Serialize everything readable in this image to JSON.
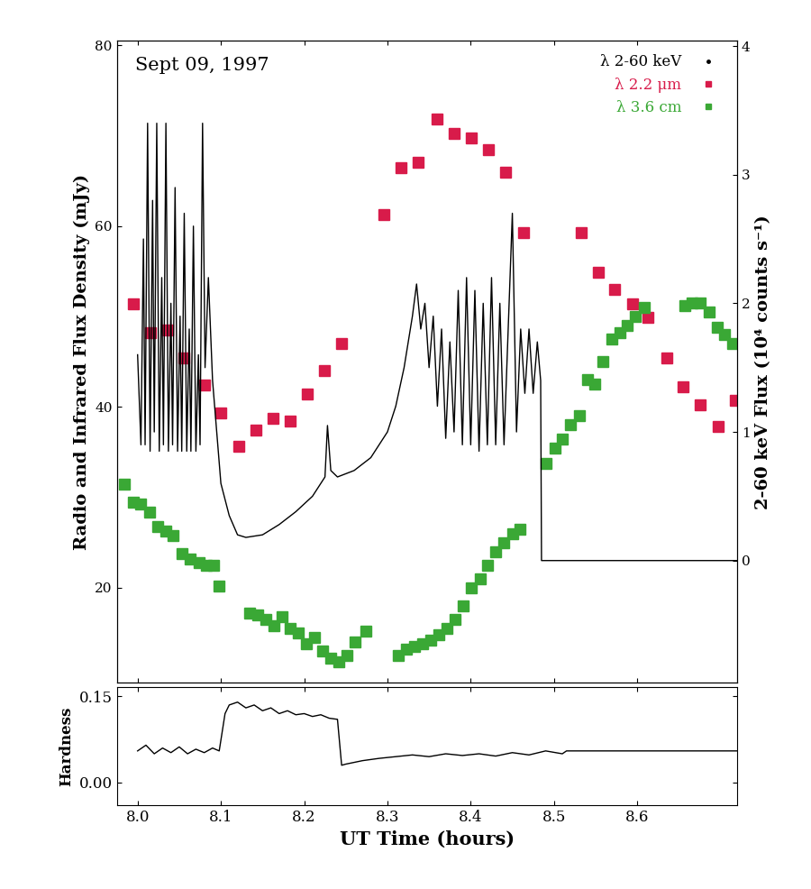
{
  "chart_data": [
    {
      "type": "line",
      "annotations": [
        {
          "text": "Sept 09, 1997"
        }
      ],
      "y_label": "Radio and Infrared Flux Density (mJy)",
      "y2_label": "2-60 keV Flux (10⁴ counts s⁻¹)",
      "xlim": [
        7.975,
        8.72
      ],
      "xticks": [
        8.0,
        8.1,
        8.2,
        8.3,
        8.4,
        8.5,
        8.6
      ],
      "ylim": [
        9.5,
        80.5
      ],
      "yticks": [
        20,
        40,
        60,
        80
      ],
      "y2lim": [
        -0.95,
        4.04
      ],
      "y2ticks": [
        0,
        1,
        2,
        3,
        4
      ],
      "tick_labels": "y",
      "legend": "upper right",
      "series": [
        {
          "name": "λ 2-60 keV",
          "color": "#000000",
          "axis": "y2",
          "type": "line",
          "marker": "none",
          "line_style": "solid",
          "x": [
            8.0,
            8.004,
            8.007,
            8.009,
            8.012,
            8.015,
            8.018,
            8.02,
            8.023,
            8.026,
            8.029,
            8.031,
            8.034,
            8.037,
            8.04,
            8.042,
            8.045,
            8.048,
            8.051,
            8.053,
            8.056,
            8.059,
            8.062,
            8.064,
            8.067,
            8.07,
            8.073,
            8.075,
            8.078,
            8.081,
            8.085,
            8.09,
            8.095,
            8.1,
            8.11,
            8.12,
            8.13,
            8.15,
            8.17,
            8.19,
            8.21,
            8.22,
            8.225,
            8.228,
            8.232,
            8.24,
            8.26,
            8.28,
            8.3,
            8.31,
            8.32,
            8.33,
            8.335,
            8.34,
            8.345,
            8.35,
            8.355,
            8.36,
            8.365,
            8.37,
            8.375,
            8.38,
            8.385,
            8.39,
            8.395,
            8.4,
            8.405,
            8.41,
            8.415,
            8.42,
            8.425,
            8.43,
            8.435,
            8.44,
            8.445,
            8.45,
            8.455,
            8.46,
            8.465,
            8.47,
            8.475,
            8.48,
            8.484,
            8.485,
            8.72
          ],
          "values": [
            1.6,
            0.9,
            2.5,
            0.9,
            3.4,
            0.85,
            2.8,
            1.0,
            3.4,
            0.85,
            2.2,
            0.9,
            3.4,
            0.85,
            2.0,
            0.9,
            2.9,
            0.85,
            1.9,
            0.85,
            2.7,
            0.85,
            1.8,
            0.85,
            2.6,
            0.85,
            1.6,
            0.9,
            3.4,
            1.5,
            2.2,
            1.4,
            1.0,
            0.6,
            0.35,
            0.2,
            0.18,
            0.2,
            0.28,
            0.38,
            0.5,
            0.6,
            0.65,
            1.05,
            0.7,
            0.65,
            0.7,
            0.8,
            1.0,
            1.2,
            1.5,
            1.9,
            2.15,
            1.8,
            2.0,
            1.5,
            1.9,
            1.2,
            1.8,
            0.95,
            1.7,
            1.0,
            2.1,
            0.9,
            2.2,
            0.9,
            2.1,
            0.85,
            2.0,
            0.9,
            2.2,
            0.9,
            2.0,
            0.9,
            1.8,
            2.7,
            1.0,
            1.8,
            1.3,
            1.8,
            1.3,
            1.7,
            1.4,
            0.0,
            0.0
          ]
        },
        {
          "name": "λ 2.2 μm",
          "color": "#d81b4a",
          "type": "scatter",
          "marker": "square",
          "line_style": "none",
          "x": [
            7.995,
            8.015,
            8.036,
            8.056,
            8.08,
            8.1,
            8.121,
            8.142,
            8.163,
            8.183,
            8.204,
            8.224,
            8.245,
            8.296,
            8.316,
            8.337,
            8.36,
            8.38,
            8.401,
            8.421,
            8.442,
            8.463,
            8.533,
            8.553,
            8.573,
            8.594,
            8.613,
            8.635,
            8.655,
            8.676,
            8.697,
            8.718
          ],
          "values": [
            51.4,
            48.2,
            48.5,
            45.4,
            42.4,
            39.3,
            35.7,
            37.5,
            38.7,
            38.4,
            41.4,
            44.0,
            47.0,
            61.3,
            66.5,
            67.1,
            71.9,
            70.3,
            69.8,
            68.5,
            66.0,
            59.3,
            59.3,
            54.9,
            53.0,
            51.4,
            49.9,
            45.4,
            42.2,
            40.2,
            37.8,
            40.7
          ]
        },
        {
          "name": "λ 3.6 cm",
          "color": "#3aa835",
          "type": "scatter",
          "marker": "square",
          "line_style": "none",
          "x": [
            7.984,
            7.995,
            8.004,
            8.014,
            8.024,
            8.034,
            8.043,
            8.053,
            8.063,
            8.074,
            8.083,
            8.091,
            8.098,
            8.134,
            8.144,
            8.154,
            8.164,
            8.173,
            8.183,
            8.193,
            8.203,
            8.212,
            8.222,
            8.232,
            8.242,
            8.251,
            8.261,
            8.274,
            8.313,
            8.323,
            8.333,
            8.342,
            8.352,
            8.362,
            8.372,
            8.381,
            8.391,
            8.401,
            8.411,
            8.42,
            8.43,
            8.44,
            8.45,
            8.459,
            8.491,
            8.501,
            8.51,
            8.52,
            8.53,
            8.54,
            8.549,
            8.559,
            8.569,
            8.579,
            8.588,
            8.598,
            8.608,
            8.657,
            8.666,
            8.676,
            8.686,
            8.696,
            8.705,
            8.715
          ],
          "values": [
            31.5,
            29.5,
            29.3,
            28.4,
            26.8,
            26.3,
            25.8,
            23.8,
            23.2,
            22.8,
            22.5,
            22.5,
            20.2,
            17.2,
            17.0,
            16.5,
            15.8,
            16.8,
            15.5,
            15.0,
            13.8,
            14.5,
            13.0,
            12.2,
            11.8,
            12.5,
            14.0,
            15.2,
            12.5,
            13.2,
            13.5,
            13.8,
            14.2,
            14.8,
            15.5,
            16.5,
            18.0,
            20.0,
            21.0,
            22.5,
            24.0,
            25.0,
            26.0,
            26.5,
            33.8,
            35.5,
            36.5,
            38.0,
            39.0,
            43.0,
            42.5,
            45.0,
            47.5,
            48.2,
            49.0,
            50.0,
            51.0,
            51.2,
            51.5,
            51.5,
            50.5,
            48.8,
            48.0,
            47.0
          ]
        }
      ]
    },
    {
      "type": "line",
      "x_label": "UT Time (hours)",
      "y_label": "Hardness",
      "xlim": [
        7.975,
        8.72
      ],
      "xticks": [
        8.0,
        8.1,
        8.2,
        8.3,
        8.4,
        8.5,
        8.6
      ],
      "ylim": [
        -0.04,
        0.166
      ],
      "yticks": [
        {
          "value": 0.0,
          "label": "0.00"
        },
        {
          "value": 0.15,
          "label": "0.15"
        }
      ],
      "color": "#000000",
      "x": [
        8.0,
        8.01,
        8.02,
        8.03,
        8.04,
        8.05,
        8.06,
        8.07,
        8.08,
        8.09,
        8.098,
        8.105,
        8.11,
        8.12,
        8.13,
        8.14,
        8.15,
        8.16,
        8.17,
        8.18,
        8.19,
        8.2,
        8.21,
        8.22,
        8.23,
        8.24,
        8.245,
        8.25,
        8.27,
        8.29,
        8.31,
        8.33,
        8.35,
        8.37,
        8.39,
        8.41,
        8.43,
        8.45,
        8.47,
        8.49,
        8.51,
        8.515,
        8.72
      ],
      "values": [
        0.055,
        0.065,
        0.05,
        0.06,
        0.052,
        0.062,
        0.05,
        0.058,
        0.052,
        0.06,
        0.055,
        0.12,
        0.135,
        0.14,
        0.13,
        0.135,
        0.125,
        0.13,
        0.12,
        0.125,
        0.118,
        0.12,
        0.115,
        0.118,
        0.112,
        0.11,
        0.03,
        0.032,
        0.038,
        0.042,
        0.045,
        0.048,
        0.045,
        0.05,
        0.047,
        0.05,
        0.046,
        0.052,
        0.048,
        0.055,
        0.05,
        0.055,
        0.055
      ]
    }
  ]
}
